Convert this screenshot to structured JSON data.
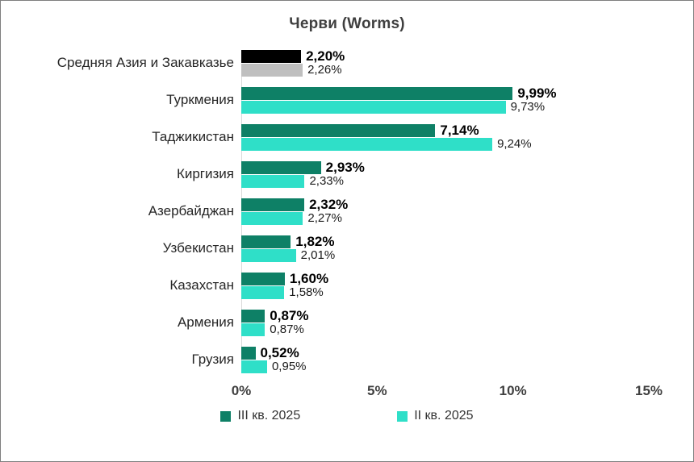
{
  "title": "Черви (Worms)",
  "axis": {
    "ticks": [
      "0%",
      "5%",
      "10%",
      "15%"
    ],
    "positions_pct": [
      0,
      33.333,
      66.667,
      100
    ]
  },
  "legend": [
    {
      "label": "III кв. 2025",
      "color": "#0E8066"
    },
    {
      "label": "II кв. 2025",
      "color": "#2FDFC8"
    }
  ],
  "chart_data": {
    "type": "bar",
    "orientation": "horizontal",
    "title": "Черви (Worms)",
    "xlabel": "",
    "ylabel": "",
    "xlim": [
      0,
      15
    ],
    "grid": false,
    "legend_position": "bottom",
    "categories": [
      "Средняя Азия и Закавказье",
      "Туркмения",
      "Таджикистан",
      "Киргизия",
      "Азербайджан",
      "Узбекистан",
      "Казахстан",
      "Армения",
      "Грузия"
    ],
    "series": [
      {
        "name": "III кв. 2025",
        "color": "#0E8066",
        "values": [
          2.2,
          9.99,
          7.14,
          2.93,
          2.32,
          1.82,
          1.6,
          0.87,
          0.52
        ],
        "labels": [
          "2,20%",
          "9,99%",
          "7,14%",
          "2,93%",
          "2,32%",
          "1,82%",
          "1,60%",
          "0,87%",
          "0,52%"
        ]
      },
      {
        "name": "II кв. 2025",
        "color": "#2FDFC8",
        "values": [
          2.26,
          9.73,
          9.24,
          2.33,
          2.27,
          2.01,
          1.58,
          0.87,
          0.95
        ],
        "labels": [
          "2,26%",
          "9,73%",
          "9,24%",
          "2,33%",
          "2,27%",
          "2,01%",
          "1,58%",
          "0,87%",
          "0,95%"
        ]
      }
    ],
    "first_row_override_colors": [
      "#000000",
      "#BFBFBF"
    ]
  }
}
